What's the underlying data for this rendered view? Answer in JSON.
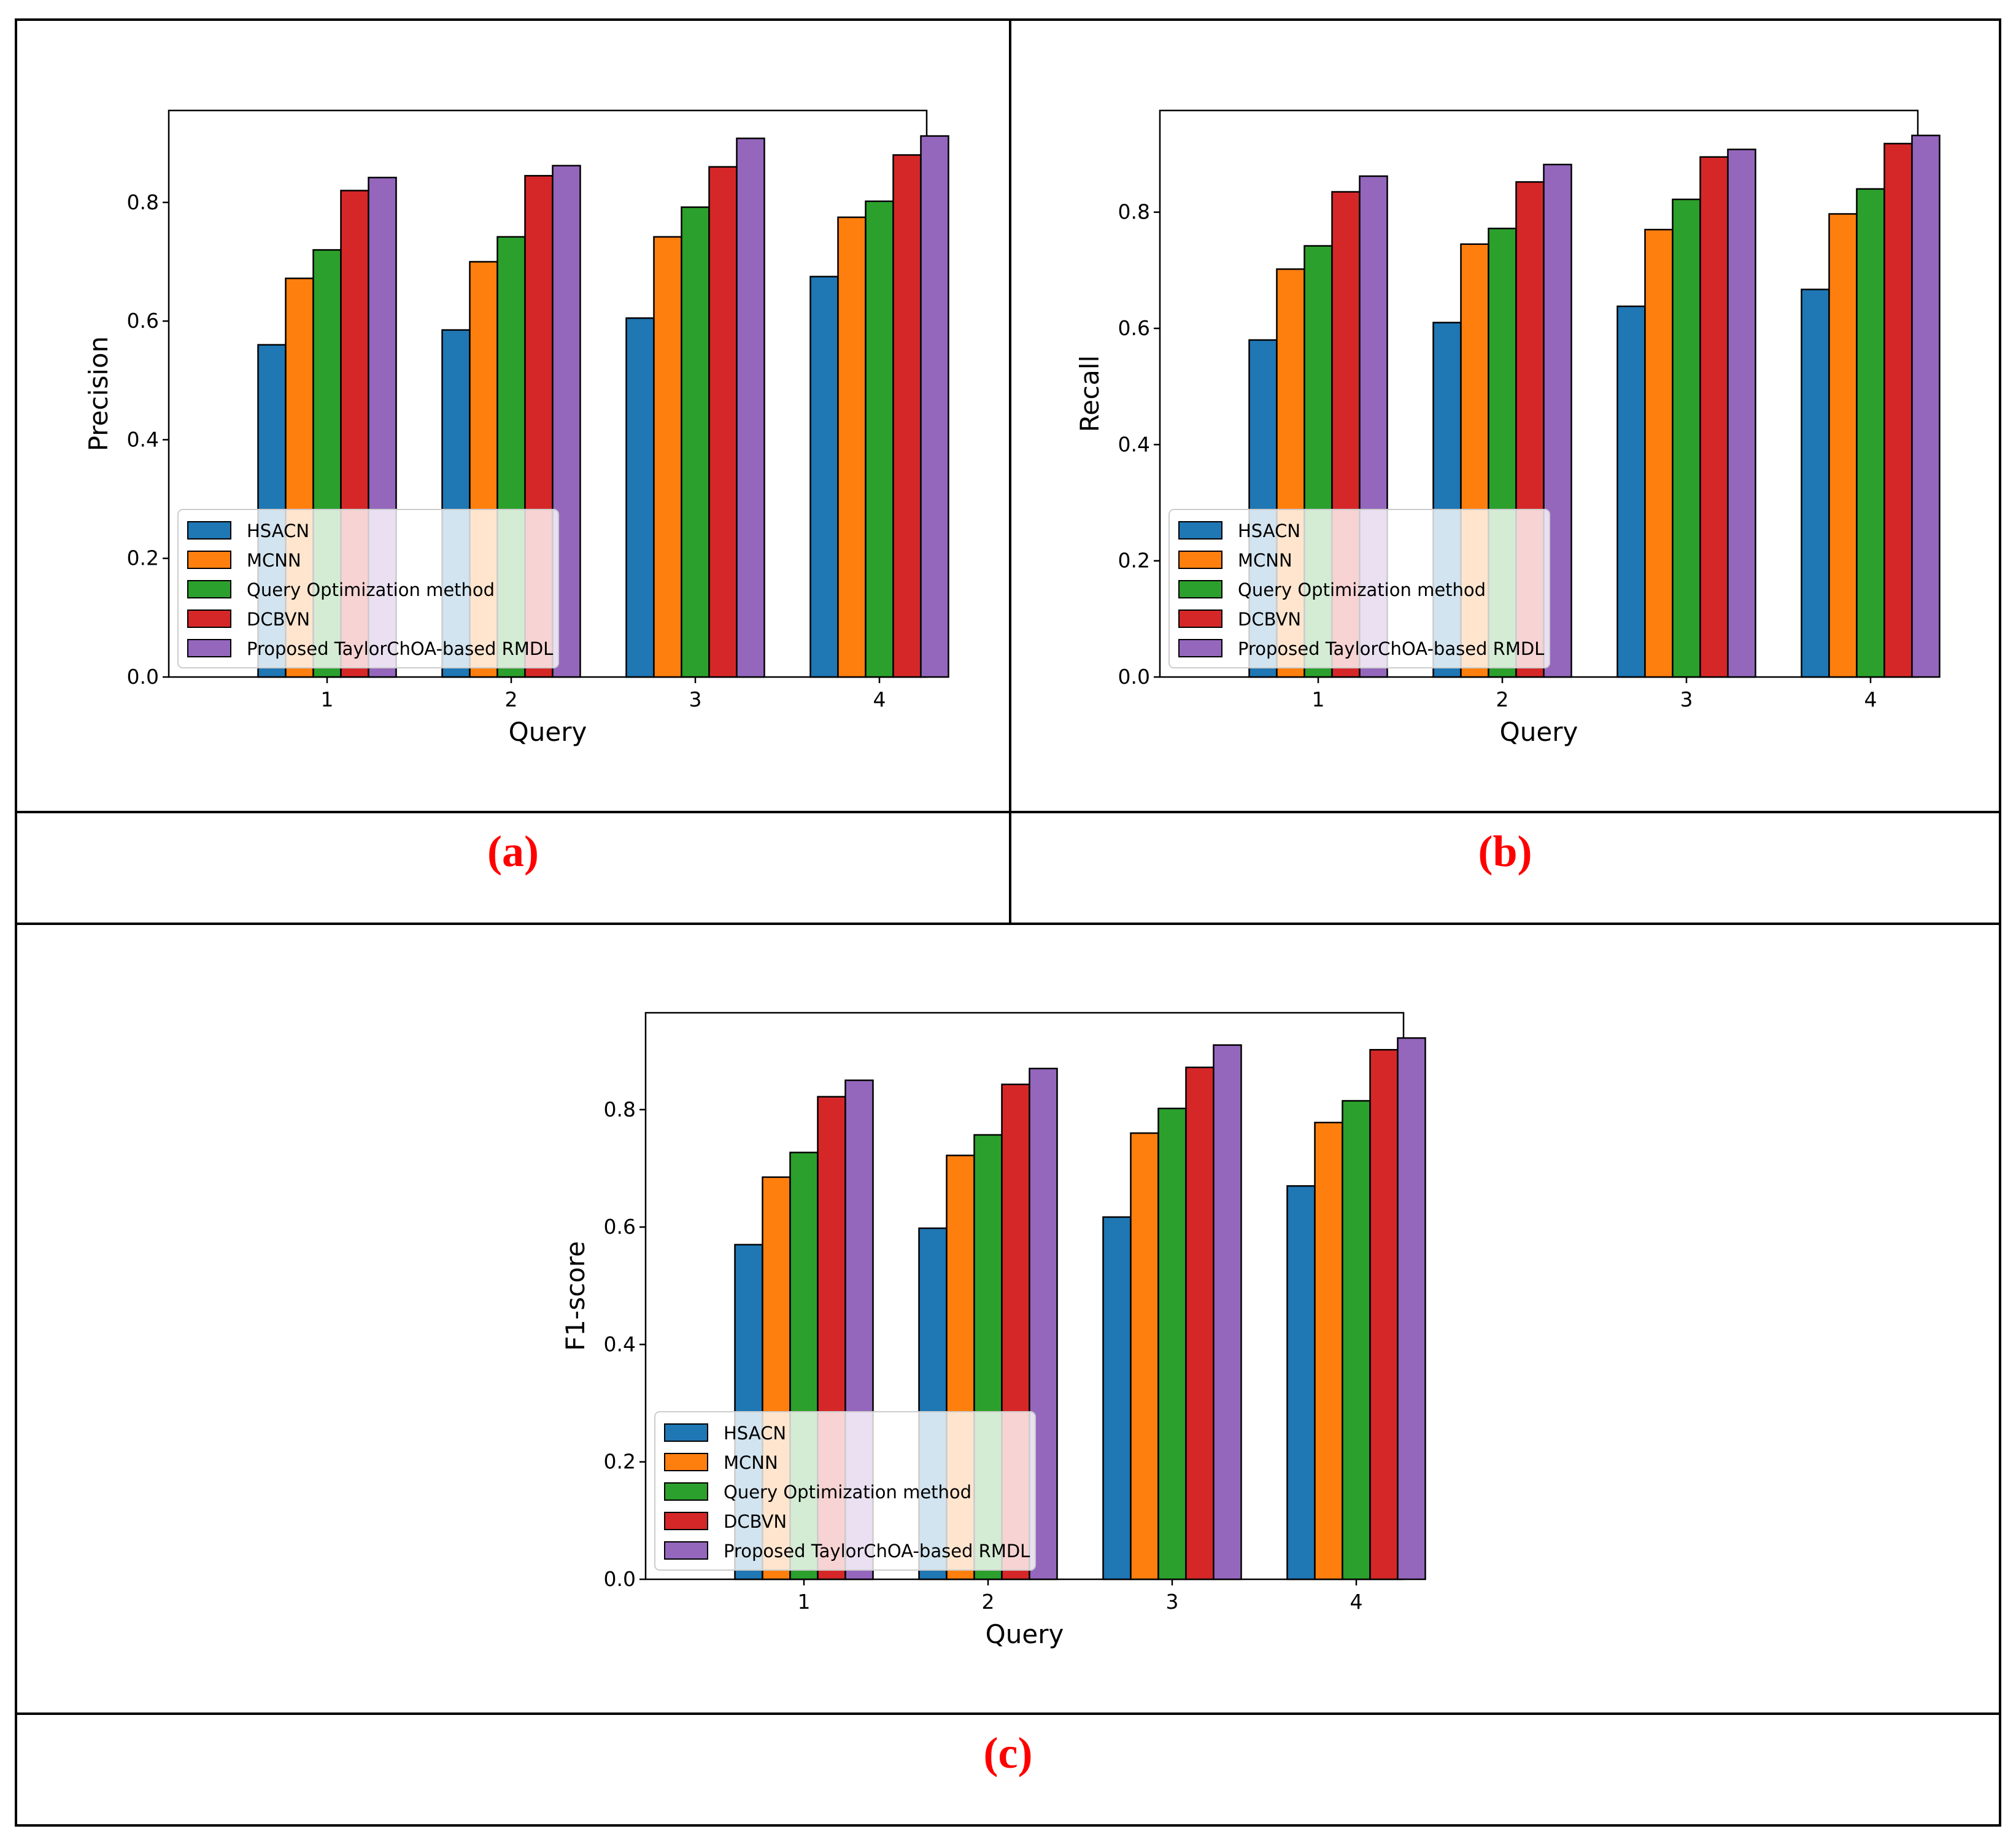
{
  "captions": [
    "(a)",
    "(b)",
    "(c)"
  ],
  "colors": {
    "HSACN": "#1f77b4",
    "MCNN": "#ff7f0e",
    "Query Optimization method": "#2ca02c",
    "DCBVN": "#d62728",
    "Proposed TaylorChOA-based RMDL": "#9467bd"
  },
  "chart_data": [
    {
      "type": "bar",
      "xlabel": "Query",
      "ylabel": "Precision",
      "categories": [
        "1",
        "2",
        "3",
        "4"
      ],
      "ylim": [
        0,
        0.955
      ],
      "yticks": [
        "0.0",
        "0.2",
        "0.4",
        "0.6",
        "0.8"
      ],
      "legend": "lower-left",
      "series": [
        {
          "name": "HSACN",
          "values": [
            0.56,
            0.585,
            0.605,
            0.675
          ]
        },
        {
          "name": "MCNN",
          "values": [
            0.672,
            0.7,
            0.742,
            0.775
          ]
        },
        {
          "name": "Query Optimization method",
          "values": [
            0.72,
            0.742,
            0.792,
            0.802
          ]
        },
        {
          "name": "DCBVN",
          "values": [
            0.82,
            0.845,
            0.86,
            0.88
          ]
        },
        {
          "name": "Proposed TaylorChOA-based RMDL",
          "values": [
            0.842,
            0.862,
            0.908,
            0.912
          ]
        }
      ]
    },
    {
      "type": "bar",
      "xlabel": "Query",
      "ylabel": "Recall",
      "categories": [
        "1",
        "2",
        "3",
        "4"
      ],
      "ylim": [
        0,
        0.975
      ],
      "yticks": [
        "0.0",
        "0.2",
        "0.4",
        "0.6",
        "0.8"
      ],
      "legend": "lower-left",
      "series": [
        {
          "name": "HSACN",
          "values": [
            0.58,
            0.61,
            0.638,
            0.667
          ]
        },
        {
          "name": "MCNN",
          "values": [
            0.702,
            0.745,
            0.77,
            0.797
          ]
        },
        {
          "name": "Query Optimization method",
          "values": [
            0.742,
            0.772,
            0.822,
            0.84
          ]
        },
        {
          "name": "DCBVN",
          "values": [
            0.835,
            0.852,
            0.895,
            0.918
          ]
        },
        {
          "name": "Proposed TaylorChOA-based RMDL",
          "values": [
            0.862,
            0.882,
            0.908,
            0.932
          ]
        }
      ]
    },
    {
      "type": "bar",
      "xlabel": "Query",
      "ylabel": "F1-score",
      "categories": [
        "1",
        "2",
        "3",
        "4"
      ],
      "ylim": [
        0,
        0.965
      ],
      "yticks": [
        "0.0",
        "0.2",
        "0.4",
        "0.6",
        "0.8"
      ],
      "legend": "lower-left",
      "series": [
        {
          "name": "HSACN",
          "values": [
            0.57,
            0.598,
            0.617,
            0.67
          ]
        },
        {
          "name": "MCNN",
          "values": [
            0.685,
            0.722,
            0.76,
            0.778
          ]
        },
        {
          "name": "Query Optimization method",
          "values": [
            0.727,
            0.757,
            0.802,
            0.815
          ]
        },
        {
          "name": "DCBVN",
          "values": [
            0.822,
            0.843,
            0.872,
            0.902
          ]
        },
        {
          "name": "Proposed TaylorChOA-based RMDL",
          "values": [
            0.85,
            0.87,
            0.91,
            0.922
          ]
        }
      ]
    }
  ]
}
